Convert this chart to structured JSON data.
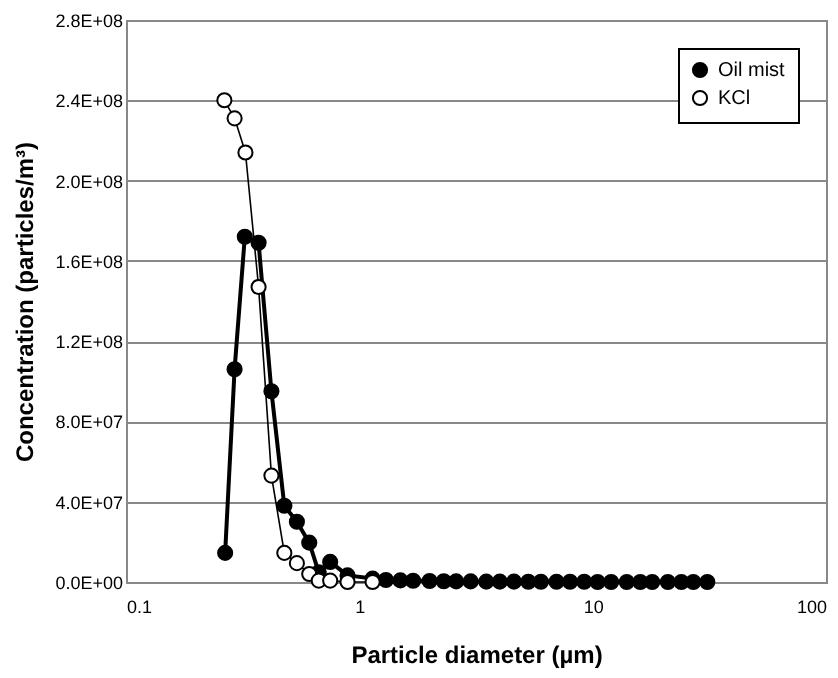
{
  "chart_data": {
    "type": "line",
    "xlabel": "Particle diameter (µm)",
    "ylabel": "Concentration (particles/m³)",
    "log": "x",
    "grid": "y",
    "legend": "top right",
    "marker": "circle",
    "line_style": "solid",
    "xlim": [
      0.1,
      100
    ],
    "xticks": [
      0.1,
      1,
      10,
      100
    ],
    "ylim": [
      0,
      280000000
    ],
    "yticks": [
      {
        "value": 0,
        "label": "0.0E+00"
      },
      {
        "value": 40000000,
        "label": "4.0E+07"
      },
      {
        "value": 80000000,
        "label": "8.0E+07"
      },
      {
        "value": 120000000,
        "label": "1.2E+08"
      },
      {
        "value": 160000000,
        "label": "1.6E+08"
      },
      {
        "value": 200000000,
        "label": "2.0E+08"
      },
      {
        "value": 240000000,
        "label": "2.4E+08"
      },
      {
        "value": 280000000,
        "label": "2.8E+08"
      }
    ],
    "series": [
      {
        "name": "Oil mist",
        "color": "#000000",
        "x": [
          0.266,
          0.292,
          0.323,
          0.37,
          0.42,
          0.477,
          0.54,
          0.61,
          0.67,
          0.75,
          0.89,
          1.14,
          1.3,
          1.5,
          1.7,
          2.0,
          2.3,
          2.6,
          3.0,
          3.5,
          4.0,
          4.6,
          5.3,
          6.0,
          7.0,
          8.0,
          9.2,
          10.5,
          12,
          14,
          16,
          18,
          21,
          24,
          27,
          31
        ],
        "values": [
          14500000,
          106000000,
          172000000,
          169000000,
          95000000,
          38000000,
          30000000,
          19600000,
          4800000,
          10000000,
          3300000,
          1700000,
          1000000,
          800000,
          600000,
          500000,
          400000,
          300000,
          300000,
          200000,
          200000,
          200000,
          100000,
          100000,
          100000,
          100000,
          100000,
          0,
          0,
          0,
          0,
          0,
          0,
          0,
          0,
          0
        ]
      },
      {
        "name": "KCl",
        "color": "#000000",
        "x": [
          0.264,
          0.292,
          0.325,
          0.37,
          0.42,
          0.477,
          0.54,
          0.61,
          0.67,
          0.75,
          0.89,
          1.14
        ],
        "values": [
          240000000,
          231000000,
          214000000,
          147000000,
          53000000,
          14500000,
          9400000,
          4000000,
          700000,
          700000,
          0,
          0
        ]
      }
    ]
  }
}
